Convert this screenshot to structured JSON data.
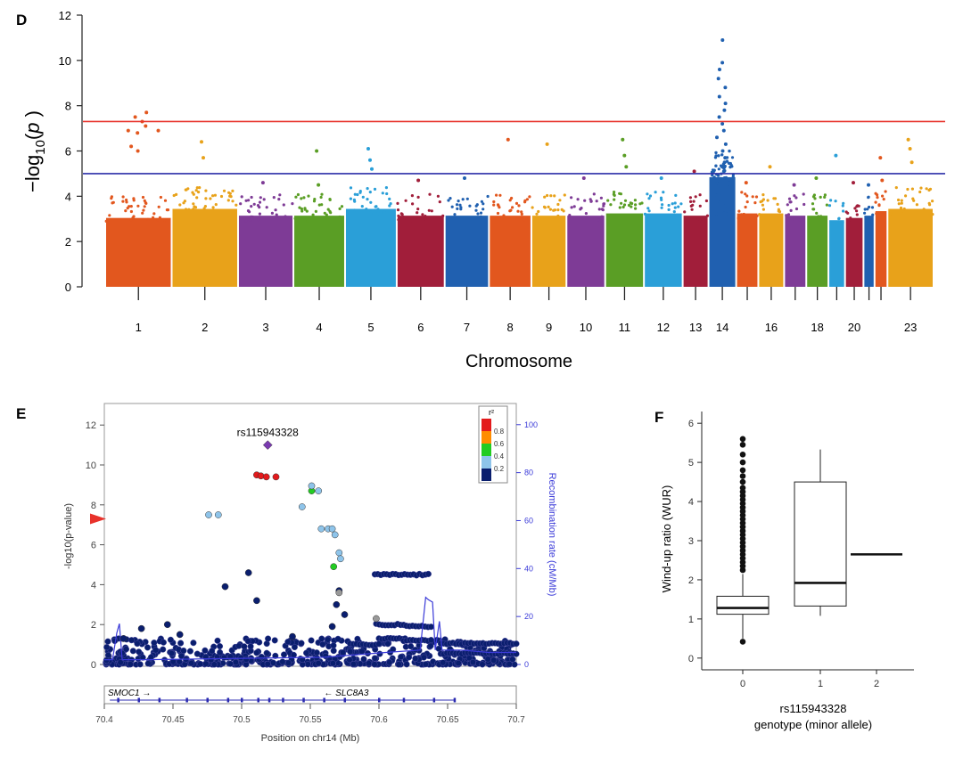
{
  "panel_labels": {
    "d": "D",
    "e": "E",
    "f": "F"
  },
  "colors": {
    "threshold_red": "#e8322b",
    "threshold_blue": "#2b2fa8",
    "chrom_palette": [
      "#e2571e",
      "#e8a21a",
      "#7e3b96",
      "#5a9e25",
      "#2a9fd8",
      "#a11e3a",
      "#2060b0"
    ],
    "ld_colors": [
      "#e31a1c",
      "#ff8c00",
      "#22cc22",
      "#8ec4ea",
      "#0a1e6e"
    ],
    "lead_color": "#7a3ab0",
    "recomb_color": "#3a3ad8"
  },
  "chart_data": [
    {
      "type": "scatter",
      "name": "manhattan",
      "title": "",
      "xlabel": "Chromosome",
      "ylabel": "−log10(p)",
      "ylim": [
        0,
        12
      ],
      "yticks": [
        "0",
        "2",
        "4",
        "6",
        "8",
        "10",
        "12"
      ],
      "chromosomes": [
        {
          "n": 1,
          "w": 1.8,
          "label": "1",
          "base": 3.2,
          "pk": [
            7.7,
            7.5,
            7.3,
            7.1,
            6.9,
            6.8,
            6.2,
            6.0
          ]
        },
        {
          "n": 2,
          "w": 1.8,
          "label": "2",
          "base": 3.6,
          "pk": [
            6.4,
            5.7
          ]
        },
        {
          "n": 3,
          "w": 1.5,
          "label": "3",
          "base": 3.3,
          "pk": [
            4.6
          ]
        },
        {
          "n": 4,
          "w": 1.4,
          "label": "4",
          "base": 3.3,
          "pk": [
            6.0,
            4.5
          ]
        },
        {
          "n": 5,
          "w": 1.4,
          "label": "5",
          "base": 3.6,
          "pk": [
            6.1,
            5.6,
            5.2
          ]
        },
        {
          "n": 6,
          "w": 1.3,
          "label": "6",
          "base": 3.3,
          "pk": [
            4.7
          ]
        },
        {
          "n": 7,
          "w": 1.2,
          "label": "7",
          "base": 3.3,
          "pk": [
            4.8
          ]
        },
        {
          "n": 8,
          "w": 1.15,
          "label": "8",
          "base": 3.3,
          "pk": [
            6.5
          ]
        },
        {
          "n": 9,
          "w": 0.95,
          "label": "9",
          "base": 3.3,
          "pk": [
            6.3
          ]
        },
        {
          "n": 10,
          "w": 1.05,
          "label": "10",
          "base": 3.3,
          "pk": [
            4.8
          ]
        },
        {
          "n": 11,
          "w": 1.05,
          "label": "11",
          "base": 3.4,
          "pk": [
            6.5,
            5.8,
            5.3
          ]
        },
        {
          "n": 12,
          "w": 1.05,
          "label": "12",
          "base": 3.4,
          "pk": [
            4.8
          ]
        },
        {
          "n": 13,
          "w": 0.7,
          "label": "13",
          "base": 3.3,
          "pk": [
            5.1
          ]
        },
        {
          "n": 14,
          "w": 0.75,
          "label": "14",
          "base": 5.0,
          "pk": [
            10.9,
            9.9,
            9.6,
            9.2,
            8.8,
            8.4,
            8.1,
            7.8,
            7.5,
            7.2,
            6.9,
            6.6,
            6.3,
            6.0,
            5.7,
            5.5,
            5.3,
            5.1
          ]
        },
        {
          "n": 15,
          "w": 0.6,
          "label": "",
          "base": 3.4,
          "pk": [
            4.6
          ]
        },
        {
          "n": 16,
          "w": 0.7,
          "label": "16",
          "base": 3.4,
          "pk": [
            5.3
          ]
        },
        {
          "n": 17,
          "w": 0.6,
          "label": "",
          "base": 3.3,
          "pk": [
            4.5
          ]
        },
        {
          "n": 18,
          "w": 0.6,
          "label": "18",
          "base": 3.3,
          "pk": [
            4.8
          ]
        },
        {
          "n": 19,
          "w": 0.45,
          "label": "",
          "base": 3.1,
          "pk": [
            5.8
          ]
        },
        {
          "n": 20,
          "w": 0.5,
          "label": "20",
          "base": 3.2,
          "pk": [
            4.6
          ]
        },
        {
          "n": 21,
          "w": 0.3,
          "label": "",
          "base": 3.3,
          "pk": [
            4.5
          ]
        },
        {
          "n": 22,
          "w": 0.35,
          "label": "",
          "base": 3.5,
          "pk": [
            5.7,
            4.7
          ]
        },
        {
          "n": 23,
          "w": 1.25,
          "label": "23",
          "base": 3.6,
          "pk": [
            6.5,
            6.1,
            5.5
          ]
        }
      ],
      "thresholds": [
        {
          "value": 7.3,
          "color": "red"
        },
        {
          "value": 5.0,
          "color": "blue"
        }
      ]
    },
    {
      "type": "scatter",
      "name": "locuszoom",
      "xlabel": "Position on chr14 (Mb)",
      "ylabel": "-log10(p-value)",
      "y2label": "Recombination rate (cM/Mb)",
      "xlim": [
        70.4,
        70.7
      ],
      "ylim": [
        0,
        12.5
      ],
      "y2lim": [
        0,
        104
      ],
      "xticks": [
        "70.4",
        "70.45",
        "70.5",
        "70.55",
        "70.6",
        "70.65",
        "70.7"
      ],
      "yticks": [
        "0",
        "2",
        "4",
        "6",
        "8",
        "10",
        "12"
      ],
      "y2ticks": [
        "0",
        "20",
        "40",
        "60",
        "80",
        "100"
      ],
      "lead_snp": {
        "label": "rs115943328",
        "x": 70.519,
        "y": 11.0
      },
      "legend": {
        "title": "r²",
        "levels": [
          "0.8",
          "0.6",
          "0.4",
          "0.2"
        ]
      },
      "genes": [
        {
          "name": "SMOC1",
          "arrow": "→"
        },
        {
          "name": "SLC8A3",
          "arrow": "←"
        }
      ],
      "points": [
        {
          "x": 70.511,
          "y": 9.5,
          "ld": 0
        },
        {
          "x": 70.514,
          "y": 9.45,
          "ld": 0
        },
        {
          "x": 70.518,
          "y": 9.4,
          "ld": 0
        },
        {
          "x": 70.525,
          "y": 9.4,
          "ld": 0
        },
        {
          "x": 70.551,
          "y": 8.7,
          "ld": 2
        },
        {
          "x": 70.551,
          "y": 8.95,
          "ld": 3
        },
        {
          "x": 70.556,
          "y": 8.7,
          "ld": 3
        },
        {
          "x": 70.476,
          "y": 7.5,
          "ld": 3
        },
        {
          "x": 70.483,
          "y": 7.5,
          "ld": 3
        },
        {
          "x": 70.544,
          "y": 7.9,
          "ld": 3
        },
        {
          "x": 70.558,
          "y": 6.8,
          "ld": 3
        },
        {
          "x": 70.563,
          "y": 6.8,
          "ld": 3
        },
        {
          "x": 70.566,
          "y": 6.8,
          "ld": 3
        },
        {
          "x": 70.568,
          "y": 6.5,
          "ld": 3
        },
        {
          "x": 70.571,
          "y": 5.6,
          "ld": 3
        },
        {
          "x": 70.572,
          "y": 5.3,
          "ld": 3
        },
        {
          "x": 70.567,
          "y": 4.9,
          "ld": 2
        },
        {
          "x": 70.488,
          "y": 3.9,
          "ld": 4
        },
        {
          "x": 70.511,
          "y": 3.2,
          "ld": 4
        },
        {
          "x": 70.505,
          "y": 4.6,
          "ld": 4
        },
        {
          "x": 70.571,
          "y": 3.7,
          "ld": 4
        },
        {
          "x": 70.569,
          "y": 3.0,
          "ld": 4
        },
        {
          "x": 70.575,
          "y": 2.5,
          "ld": 4
        },
        {
          "x": 70.566,
          "y": 1.9,
          "ld": 4
        },
        {
          "x": 70.446,
          "y": 2.0,
          "ld": 4
        },
        {
          "x": 70.455,
          "y": 1.5,
          "ld": 4
        },
        {
          "x": 70.414,
          "y": 1.3,
          "ld": 4
        },
        {
          "x": 70.427,
          "y": 1.8,
          "ld": 4
        },
        {
          "x": 70.537,
          "y": 1.4,
          "ld": 4
        }
      ],
      "flat_clusters": [
        {
          "x0": 70.597,
          "x1": 70.636,
          "y": 4.5
        },
        {
          "x0": 70.598,
          "x1": 70.618,
          "y": 2.0
        },
        {
          "x0": 70.62,
          "x1": 70.638,
          "y": 1.9
        },
        {
          "x0": 70.6,
          "x1": 70.619,
          "y": 1.3
        },
        {
          "x0": 70.579,
          "x1": 70.6,
          "y": 1.0
        },
        {
          "x0": 70.618,
          "x1": 70.638,
          "y": 1.2
        },
        {
          "x0": 70.645,
          "x1": 70.7,
          "y": 1.05
        },
        {
          "x0": 70.645,
          "x1": 70.7,
          "y": 0.55
        }
      ],
      "recombination": [
        [
          70.4,
          2
        ],
        [
          70.406,
          2
        ],
        [
          70.409,
          13
        ],
        [
          70.411,
          17
        ],
        [
          70.413,
          2
        ],
        [
          70.43,
          2
        ],
        [
          70.56,
          3
        ],
        [
          70.605,
          5
        ],
        [
          70.63,
          6
        ],
        [
          70.634,
          28
        ],
        [
          70.636,
          27
        ],
        [
          70.639,
          26
        ],
        [
          70.641,
          6
        ],
        [
          70.644,
          18
        ],
        [
          70.646,
          6
        ],
        [
          70.66,
          6
        ],
        [
          70.68,
          5
        ],
        [
          70.7,
          5
        ]
      ]
    },
    {
      "type": "box",
      "name": "boxplot",
      "xlabel": "rs115943328",
      "xlabel2": "genotype (minor allele)",
      "ylabel": "Wind-up ratio (WUR)",
      "ylim": [
        -0.3,
        6.3
      ],
      "yticks": [
        "0",
        "1",
        "2",
        "3",
        "4",
        "5",
        "6"
      ],
      "categories": [
        "0",
        "1",
        "2"
      ],
      "boxes": [
        {
          "min": 0.5,
          "q1": 1.12,
          "median": 1.28,
          "q3": 1.58,
          "max": 2.15
        },
        {
          "min": 1.08,
          "q1": 1.33,
          "median": 1.92,
          "q3": 4.5,
          "max": 5.33
        },
        {
          "min": 2.65,
          "q1": 2.65,
          "median": 2.65,
          "q3": 2.65,
          "max": 2.65
        }
      ],
      "outliers_group0": [
        2.25,
        2.35,
        2.45,
        2.55,
        2.65,
        2.75,
        2.85,
        2.95,
        3.05,
        3.15,
        3.25,
        3.35,
        3.45,
        3.55,
        3.65,
        3.75,
        3.85,
        3.95,
        4.05,
        4.15,
        4.25,
        4.35,
        4.5,
        4.65,
        4.8,
        5.0,
        5.2,
        5.45,
        5.6,
        0.42
      ]
    }
  ]
}
